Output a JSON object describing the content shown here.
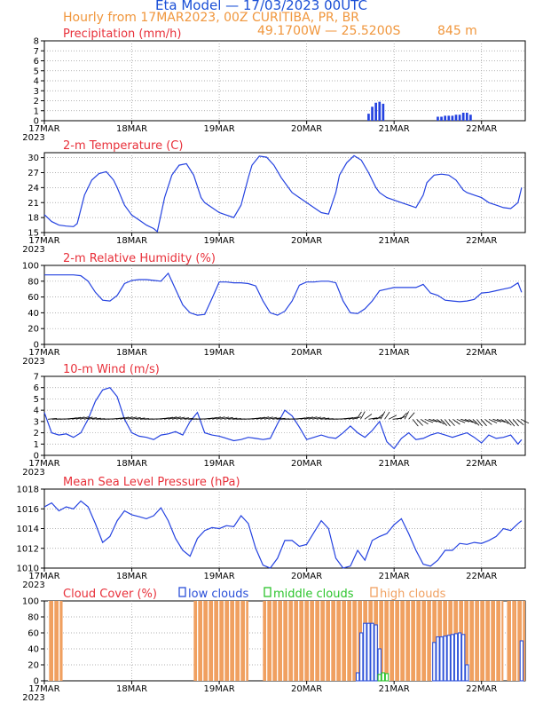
{
  "header": {
    "title": "Eta Model — 17/03/2023 00UTC",
    "subtitle": "Hourly from 17MAR2023, 00Z  CURITIBA, PR, BR",
    "coords": "49.1700W — 25.5200S",
    "elevation": "845  m"
  },
  "colors": {
    "title": "#1a4fd6",
    "subtitle": "#f0963c",
    "panel_title": "#e8303a",
    "series": "#2442e0",
    "low_clouds": "#2a4fd8",
    "middle_clouds": "#2bc42b",
    "high_clouds": "#f0a060"
  },
  "x_axis": {
    "ticks": [
      "17MAR",
      "18MAR",
      "19MAR",
      "20MAR",
      "21MAR",
      "22MAR"
    ],
    "year": "2023",
    "hours_total": 132
  },
  "chart_data": [
    {
      "type": "bar",
      "title": "Precipitation (mm/h)",
      "ylim": [
        0,
        8
      ],
      "yticks": [
        "0",
        "1",
        "2",
        "3",
        "4",
        "5",
        "6",
        "7",
        "8"
      ],
      "x_hours": [
        89,
        90,
        91,
        92,
        93,
        108,
        109,
        110,
        111,
        112,
        113,
        114,
        115,
        116,
        117
      ],
      "values": [
        0.7,
        1.4,
        1.8,
        1.9,
        1.7,
        0.4,
        0.4,
        0.5,
        0.5,
        0.5,
        0.6,
        0.6,
        0.8,
        0.8,
        0.6
      ]
    },
    {
      "type": "line",
      "title": "2-m Temperature (C)",
      "ylim": [
        15,
        31
      ],
      "yticks": [
        "15",
        "18",
        "21",
        "24",
        "27",
        "30"
      ],
      "x_hours": [
        0,
        2,
        4,
        6,
        8,
        9,
        11,
        13,
        15,
        17,
        19,
        20,
        22,
        24,
        26,
        28,
        30,
        31,
        33,
        35,
        37,
        39,
        41,
        43,
        44,
        46,
        48,
        50,
        52,
        54,
        56,
        57,
        59,
        61,
        63,
        65,
        67,
        68,
        70,
        72,
        74,
        76,
        78,
        80,
        81,
        83,
        85,
        87,
        89,
        91,
        92,
        94,
        96,
        98,
        100,
        102,
        104,
        105,
        107,
        109,
        111,
        113,
        115,
        116,
        118,
        120,
        122,
        124,
        126,
        128,
        130,
        131
      ],
      "values": [
        18.6,
        17.2,
        16.5,
        16.3,
        16.2,
        16.8,
        22.5,
        25.5,
        26.8,
        27.2,
        25.5,
        24.0,
        20.5,
        18.5,
        17.5,
        16.5,
        15.8,
        15.2,
        22.0,
        26.5,
        28.5,
        28.8,
        26.5,
        22.0,
        21.0,
        20.0,
        19.0,
        18.5,
        18.0,
        20.5,
        26.0,
        28.5,
        30.3,
        30.1,
        28.5,
        26.0,
        24.0,
        23.0,
        22.0,
        21.0,
        20.0,
        19.0,
        18.7,
        23.0,
        26.5,
        29.0,
        30.4,
        29.5,
        27.0,
        24.0,
        23.0,
        22.0,
        21.5,
        21.0,
        20.5,
        20.0,
        22.5,
        25.0,
        26.5,
        26.7,
        26.5,
        25.5,
        23.5,
        23.0,
        22.5,
        22.0,
        21.0,
        20.5,
        20.0,
        19.8,
        21.0,
        24.0
      ]
    },
    {
      "type": "line",
      "title": "2-m Relative Humidity (%)",
      "ylim": [
        0,
        100
      ],
      "yticks": [
        "0",
        "20",
        "40",
        "60",
        "80",
        "100"
      ],
      "x_hours": [
        0,
        2,
        4,
        6,
        8,
        10,
        12,
        14,
        16,
        18,
        20,
        22,
        24,
        26,
        28,
        30,
        32,
        34,
        36,
        38,
        40,
        42,
        44,
        46,
        48,
        50,
        52,
        54,
        56,
        58,
        60,
        62,
        64,
        66,
        68,
        70,
        72,
        74,
        76,
        78,
        80,
        82,
        84,
        86,
        88,
        90,
        92,
        94,
        96,
        98,
        100,
        102,
        104,
        106,
        108,
        110,
        112,
        114,
        116,
        118,
        120,
        122,
        124,
        126,
        128,
        130,
        131
      ],
      "values": [
        88,
        88,
        88,
        88,
        88,
        87,
        80,
        66,
        56,
        55,
        62,
        77,
        81,
        82,
        82,
        81,
        80,
        90,
        70,
        50,
        40,
        37,
        38,
        58,
        79,
        79,
        78,
        78,
        77,
        74,
        55,
        40,
        37,
        42,
        55,
        75,
        79,
        79,
        80,
        80,
        78,
        55,
        40,
        39,
        45,
        55,
        68,
        70,
        72,
        72,
        72,
        72,
        76,
        65,
        62,
        56,
        55,
        54,
        55,
        57,
        65,
        66,
        68,
        70,
        72,
        78,
        66
      ]
    },
    {
      "type": "line",
      "title": "10-m Wind (m/s)",
      "ylim": [
        0,
        7
      ],
      "yticks": [
        "0",
        "1",
        "2",
        "3",
        "4",
        "5",
        "6",
        "7"
      ],
      "x_hours": [
        0,
        2,
        4,
        6,
        8,
        10,
        12,
        14,
        16,
        18,
        20,
        22,
        24,
        26,
        28,
        30,
        32,
        34,
        36,
        38,
        40,
        42,
        44,
        46,
        48,
        50,
        52,
        54,
        56,
        58,
        60,
        62,
        64,
        66,
        68,
        70,
        72,
        74,
        76,
        78,
        80,
        82,
        84,
        86,
        88,
        90,
        92,
        94,
        96,
        98,
        100,
        102,
        104,
        106,
        108,
        110,
        112,
        114,
        116,
        118,
        120,
        122,
        124,
        126,
        128,
        130,
        131
      ],
      "values": [
        3.8,
        2.0,
        1.8,
        1.9,
        1.6,
        2.0,
        3.2,
        4.8,
        5.8,
        6.0,
        5.2,
        3.2,
        2.0,
        1.7,
        1.6,
        1.4,
        1.8,
        1.9,
        2.1,
        1.8,
        3.0,
        3.8,
        2.0,
        1.8,
        1.7,
        1.5,
        1.3,
        1.4,
        1.6,
        1.5,
        1.4,
        1.5,
        2.8,
        4.0,
        3.5,
        2.5,
        1.4,
        1.6,
        1.8,
        1.6,
        1.5,
        2.0,
        2.6,
        2.0,
        1.6,
        2.2,
        3.0,
        1.2,
        0.6,
        1.5,
        2.0,
        1.4,
        1.5,
        1.8,
        2.0,
        1.8,
        1.6,
        1.8,
        2.0,
        1.6,
        1.1,
        1.8,
        1.5,
        1.6,
        1.8,
        1.0,
        1.4
      ],
      "annotation": "wind vectors along y=3.2"
    },
    {
      "type": "line",
      "title": "Mean Sea Level Pressure (hPa)",
      "ylim": [
        1010,
        1018
      ],
      "yticks": [
        "1010",
        "1012",
        "1014",
        "1016",
        "1018"
      ],
      "x_hours": [
        0,
        2,
        4,
        6,
        8,
        10,
        12,
        14,
        16,
        18,
        20,
        22,
        24,
        26,
        28,
        30,
        32,
        34,
        36,
        38,
        40,
        42,
        44,
        46,
        48,
        50,
        52,
        54,
        56,
        58,
        60,
        62,
        64,
        66,
        68,
        70,
        72,
        74,
        76,
        78,
        80,
        82,
        84,
        86,
        88,
        90,
        92,
        94,
        96,
        98,
        100,
        102,
        104,
        106,
        108,
        110,
        112,
        114,
        116,
        118,
        120,
        122,
        124,
        126,
        128,
        130,
        131
      ],
      "values": [
        1016.2,
        1016.6,
        1015.8,
        1016.2,
        1016.0,
        1016.8,
        1016.2,
        1014.5,
        1012.6,
        1013.2,
        1014.8,
        1015.8,
        1015.4,
        1015.2,
        1015.0,
        1015.3,
        1016.1,
        1014.8,
        1013.0,
        1011.8,
        1011.2,
        1013.0,
        1013.8,
        1014.1,
        1014.0,
        1014.3,
        1014.2,
        1015.3,
        1014.5,
        1012.0,
        1010.3,
        1010.0,
        1011.0,
        1012.8,
        1012.8,
        1012.2,
        1012.4,
        1013.6,
        1014.8,
        1014.0,
        1011.0,
        1010.0,
        1010.2,
        1011.8,
        1010.8,
        1012.8,
        1013.2,
        1013.5,
        1014.4,
        1015.0,
        1013.5,
        1011.8,
        1010.4,
        1010.2,
        1010.8,
        1011.8,
        1011.8,
        1012.5,
        1012.4,
        1012.6,
        1012.5,
        1012.8,
        1013.2,
        1014.0,
        1013.8,
        1014.5,
        1014.8
      ]
    },
    {
      "type": "bar",
      "title": "Cloud Cover (%)",
      "legend": [
        "low clouds",
        "middle clouds",
        "high clouds"
      ],
      "ylim": [
        0,
        100
      ],
      "yticks": [
        "0",
        "20",
        "40",
        "60",
        "80",
        "100"
      ],
      "high": [
        {
          "from": 1,
          "to": 5,
          "value": 100
        },
        {
          "from": 41,
          "to": 56,
          "value": 100
        },
        {
          "from": 60,
          "to": 89,
          "value": 100
        },
        {
          "from": 89,
          "to": 106,
          "value": 100
        },
        {
          "from": 106,
          "to": 119,
          "value": 100
        },
        {
          "from": 119,
          "to": 126,
          "value": 100
        },
        {
          "from": 127,
          "to": 129,
          "value": 100
        },
        {
          "from": 129,
          "to": 132,
          "value": 100
        }
      ],
      "low": [
        {
          "x": 86,
          "value": 10
        },
        {
          "x": 87,
          "value": 60
        },
        {
          "x": 88,
          "value": 72
        },
        {
          "x": 89,
          "value": 72
        },
        {
          "x": 90,
          "value": 72
        },
        {
          "x": 91,
          "value": 70
        },
        {
          "x": 92,
          "value": 40
        },
        {
          "x": 107,
          "value": 48
        },
        {
          "x": 108,
          "value": 55
        },
        {
          "x": 109,
          "value": 55
        },
        {
          "x": 110,
          "value": 56
        },
        {
          "x": 111,
          "value": 57
        },
        {
          "x": 112,
          "value": 58
        },
        {
          "x": 113,
          "value": 59
        },
        {
          "x": 114,
          "value": 60
        },
        {
          "x": 115,
          "value": 58
        },
        {
          "x": 116,
          "value": 20
        },
        {
          "x": 131,
          "value": 50
        }
      ],
      "middle": [
        {
          "x": 92,
          "value": 8
        },
        {
          "x": 93,
          "value": 10
        },
        {
          "x": 94,
          "value": 9
        }
      ]
    }
  ]
}
